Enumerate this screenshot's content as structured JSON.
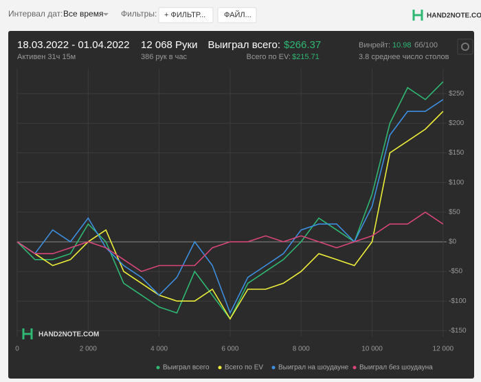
{
  "toolbar": {
    "date_label": "Интервал дат:",
    "date_value": "Все время",
    "filters_label": "Фильтры:",
    "filter_button": "+ ФИЛЬТР...",
    "file_button": "ФАЙЛ...",
    "brand": "HAND2NOTE.COM"
  },
  "stats": {
    "period": "18.03.2022 - 01.04.2022",
    "active": "Активен 31ч 15м",
    "hands": "12 068 Руки",
    "hands_per_hour": "386 рук в час",
    "won_label": "Выиграл всего:",
    "won_value": "$266.37",
    "ev_label": "Всего по EV:",
    "ev_value": "$215.71",
    "winrate_label": "Винрейт:",
    "winrate_value": "10.98",
    "winrate_unit": "бб/100",
    "tables": "3.8 среднее число столов"
  },
  "watermark": "HAND2NOTE.COM",
  "chart_data": {
    "type": "line",
    "x": [
      0,
      500,
      1000,
      1500,
      2000,
      2500,
      3000,
      3500,
      4000,
      4500,
      5000,
      5500,
      6000,
      6500,
      7000,
      7500,
      8000,
      8500,
      9000,
      9500,
      10000,
      10500,
      11000,
      11500,
      12000
    ],
    "series": [
      {
        "name": "Выиграл всего",
        "color": "#2fb872",
        "values": [
          0,
          -30,
          -30,
          -20,
          30,
          0,
          -70,
          -90,
          -110,
          -120,
          -50,
          -90,
          -130,
          -70,
          -50,
          -30,
          0,
          40,
          20,
          0,
          80,
          200,
          260,
          240,
          270
        ]
      },
      {
        "name": "Всего по EV",
        "color": "#eeee3a",
        "values": [
          0,
          -20,
          -40,
          -30,
          0,
          20,
          -50,
          -70,
          -90,
          -100,
          -100,
          -80,
          -130,
          -80,
          -80,
          -70,
          -50,
          -20,
          -30,
          -40,
          0,
          150,
          170,
          190,
          220
        ]
      },
      {
        "name": "Выиграл на шоудауне",
        "color": "#3d8fe0",
        "values": [
          0,
          -20,
          20,
          0,
          40,
          -10,
          -40,
          -60,
          -90,
          -60,
          0,
          -40,
          -120,
          -60,
          -40,
          -20,
          20,
          30,
          30,
          0,
          60,
          180,
          220,
          220,
          240
        ]
      },
      {
        "name": "Выиграл без шоудауна",
        "color": "#d8457b",
        "values": [
          0,
          -20,
          -20,
          -10,
          0,
          -10,
          -30,
          -50,
          -40,
          -40,
          -40,
          -10,
          0,
          0,
          10,
          0,
          10,
          0,
          -10,
          0,
          10,
          30,
          30,
          50,
          30
        ]
      }
    ],
    "xlim": [
      0,
      12100
    ],
    "ylim": [
      -160,
      292
    ],
    "xticks": [
      0,
      {
        "value": 2000,
        "label": "2 000"
      },
      {
        "value": 4000,
        "label": "4 000"
      },
      {
        "value": 6000,
        "label": "6 000"
      },
      {
        "value": 8000,
        "label": "8 000"
      },
      {
        "value": 10000,
        "label": "10 000"
      },
      {
        "value": 12000,
        "label": "12 000"
      }
    ],
    "yticks": [
      {
        "value": -150,
        "label": "-$150"
      },
      {
        "value": -100,
        "label": "-$100"
      },
      {
        "value": -50,
        "label": "-$50"
      },
      {
        "value": 0,
        "label": "$0"
      },
      {
        "value": 50,
        "label": "$50"
      },
      {
        "value": 100,
        "label": "$100"
      },
      {
        "value": 150,
        "label": "$150"
      },
      {
        "value": 200,
        "label": "$200"
      },
      {
        "value": 250,
        "label": "$250"
      }
    ],
    "grid": true
  }
}
